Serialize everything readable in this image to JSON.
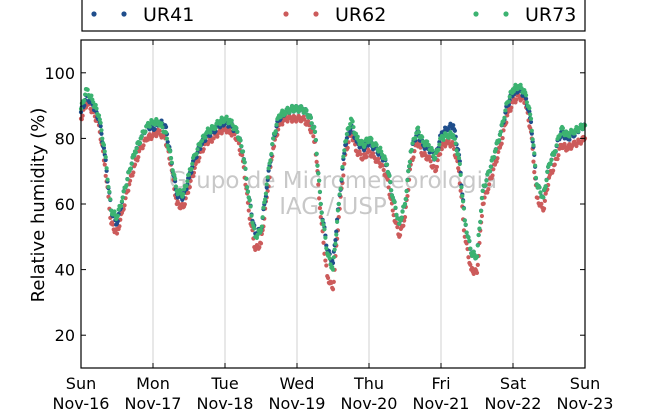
{
  "chart_data": {
    "type": "scatter",
    "ylabel": "Relative humidity (%)",
    "xlabel": "",
    "ylim": [
      10,
      110
    ],
    "xlim": [
      0,
      7
    ],
    "yticks": [
      20,
      40,
      60,
      80,
      100
    ],
    "grid": "vertical",
    "legend_position": "top",
    "xtick_labels": [
      {
        "day": "Sun",
        "date": "Nov-16"
      },
      {
        "day": "Mon",
        "date": "Nov-17"
      },
      {
        "day": "Tue",
        "date": "Nov-18"
      },
      {
        "day": "Wed",
        "date": "Nov-19"
      },
      {
        "day": "Thu",
        "date": "Nov-20"
      },
      {
        "day": "Fri",
        "date": "Nov-21"
      },
      {
        "day": "Sat",
        "date": "Nov-22"
      },
      {
        "day": "Sun",
        "date": "Nov-23"
      }
    ],
    "watermark": [
      "Grupo de Micrometeorologia",
      "IAG / USP"
    ],
    "series": [
      {
        "name": "UR41",
        "color": "#1f4e8c",
        "points": [
          [
            0.0,
            88
          ],
          [
            0.08,
            93
          ],
          [
            0.17,
            90
          ],
          [
            0.25,
            86
          ],
          [
            0.33,
            75
          ],
          [
            0.42,
            58
          ],
          [
            0.5,
            54
          ],
          [
            0.58,
            62
          ],
          [
            0.67,
            70
          ],
          [
            0.75,
            76
          ],
          [
            0.83,
            80
          ],
          [
            0.92,
            84
          ],
          [
            1.0,
            83
          ],
          [
            1.08,
            85
          ],
          [
            1.17,
            84
          ],
          [
            1.25,
            74
          ],
          [
            1.33,
            63
          ],
          [
            1.42,
            62
          ],
          [
            1.5,
            68
          ],
          [
            1.58,
            74
          ],
          [
            1.67,
            78
          ],
          [
            1.75,
            81
          ],
          [
            1.83,
            82
          ],
          [
            1.92,
            84
          ],
          [
            2.0,
            85
          ],
          [
            2.08,
            84
          ],
          [
            2.17,
            82
          ],
          [
            2.25,
            76
          ],
          [
            2.33,
            62
          ],
          [
            2.42,
            51
          ],
          [
            2.5,
            52
          ],
          [
            2.58,
            65
          ],
          [
            2.67,
            80
          ],
          [
            2.75,
            86
          ],
          [
            2.83,
            88
          ],
          [
            2.92,
            89
          ],
          [
            3.0,
            89
          ],
          [
            3.08,
            89
          ],
          [
            3.17,
            87
          ],
          [
            3.25,
            82
          ],
          [
            3.33,
            60
          ],
          [
            3.42,
            46
          ],
          [
            3.5,
            42
          ],
          [
            3.58,
            60
          ],
          [
            3.67,
            78
          ],
          [
            3.75,
            84
          ],
          [
            3.83,
            79
          ],
          [
            3.92,
            77
          ],
          [
            4.0,
            79
          ],
          [
            4.08,
            77
          ],
          [
            4.17,
            75
          ],
          [
            4.25,
            72
          ],
          [
            4.33,
            62
          ],
          [
            4.42,
            54
          ],
          [
            4.5,
            60
          ],
          [
            4.58,
            76
          ],
          [
            4.67,
            82
          ],
          [
            4.75,
            78
          ],
          [
            4.83,
            77
          ],
          [
            4.92,
            74
          ],
          [
            5.0,
            81
          ],
          [
            5.08,
            83
          ],
          [
            5.17,
            84
          ],
          [
            5.25,
            75
          ],
          [
            5.33,
            55
          ],
          [
            5.42,
            45
          ],
          [
            5.5,
            44
          ],
          [
            5.58,
            64
          ],
          [
            5.67,
            70
          ],
          [
            5.75,
            76
          ],
          [
            5.83,
            82
          ],
          [
            5.92,
            90
          ],
          [
            6.0,
            94
          ],
          [
            6.08,
            95
          ],
          [
            6.17,
            93
          ],
          [
            6.25,
            85
          ],
          [
            6.33,
            66
          ],
          [
            6.42,
            62
          ],
          [
            6.5,
            72
          ],
          [
            6.58,
            76
          ],
          [
            6.67,
            82
          ],
          [
            6.75,
            80
          ],
          [
            6.83,
            81
          ],
          [
            6.92,
            83
          ],
          [
            7.0,
            84
          ]
        ]
      },
      {
        "name": "UR62",
        "color": "#cc5b5b",
        "points": [
          [
            0.0,
            86
          ],
          [
            0.08,
            91
          ],
          [
            0.17,
            88
          ],
          [
            0.25,
            84
          ],
          [
            0.33,
            72
          ],
          [
            0.42,
            54
          ],
          [
            0.5,
            51
          ],
          [
            0.58,
            58
          ],
          [
            0.67,
            66
          ],
          [
            0.75,
            72
          ],
          [
            0.83,
            77
          ],
          [
            0.92,
            80
          ],
          [
            1.0,
            81
          ],
          [
            1.08,
            82
          ],
          [
            1.17,
            80
          ],
          [
            1.25,
            72
          ],
          [
            1.33,
            60
          ],
          [
            1.42,
            59
          ],
          [
            1.5,
            65
          ],
          [
            1.58,
            71
          ],
          [
            1.67,
            76
          ],
          [
            1.75,
            79
          ],
          [
            1.83,
            80
          ],
          [
            1.92,
            82
          ],
          [
            2.0,
            83
          ],
          [
            2.08,
            82
          ],
          [
            2.17,
            80
          ],
          [
            2.25,
            73
          ],
          [
            2.33,
            58
          ],
          [
            2.42,
            46
          ],
          [
            2.5,
            48
          ],
          [
            2.58,
            62
          ],
          [
            2.67,
            77
          ],
          [
            2.75,
            84
          ],
          [
            2.83,
            86
          ],
          [
            2.92,
            86
          ],
          [
            3.0,
            86
          ],
          [
            3.08,
            86
          ],
          [
            3.17,
            84
          ],
          [
            3.25,
            79
          ],
          [
            3.33,
            56
          ],
          [
            3.42,
            38
          ],
          [
            3.5,
            34
          ],
          [
            3.58,
            56
          ],
          [
            3.67,
            75
          ],
          [
            3.75,
            82
          ],
          [
            3.83,
            76
          ],
          [
            3.92,
            74
          ],
          [
            4.0,
            76
          ],
          [
            4.08,
            74
          ],
          [
            4.17,
            72
          ],
          [
            4.25,
            68
          ],
          [
            4.33,
            58
          ],
          [
            4.42,
            50
          ],
          [
            4.5,
            56
          ],
          [
            4.58,
            72
          ],
          [
            4.67,
            79
          ],
          [
            4.75,
            75
          ],
          [
            4.83,
            74
          ],
          [
            4.92,
            70
          ],
          [
            5.0,
            77
          ],
          [
            5.08,
            79
          ],
          [
            5.17,
            78
          ],
          [
            5.25,
            70
          ],
          [
            5.33,
            50
          ],
          [
            5.42,
            40
          ],
          [
            5.5,
            39
          ],
          [
            5.58,
            60
          ],
          [
            5.67,
            66
          ],
          [
            5.75,
            72
          ],
          [
            5.83,
            78
          ],
          [
            5.92,
            87
          ],
          [
            6.0,
            91
          ],
          [
            6.08,
            93
          ],
          [
            6.17,
            91
          ],
          [
            6.25,
            82
          ],
          [
            6.33,
            62
          ],
          [
            6.42,
            58
          ],
          [
            6.5,
            68
          ],
          [
            6.58,
            72
          ],
          [
            6.67,
            78
          ],
          [
            6.75,
            77
          ],
          [
            6.83,
            78
          ],
          [
            6.92,
            79
          ],
          [
            7.0,
            80
          ]
        ]
      },
      {
        "name": "UR73",
        "color": "#3cb371",
        "points": [
          [
            0.0,
            89
          ],
          [
            0.08,
            95
          ],
          [
            0.17,
            91
          ],
          [
            0.25,
            87
          ],
          [
            0.33,
            76
          ],
          [
            0.42,
            58
          ],
          [
            0.5,
            56
          ],
          [
            0.58,
            62
          ],
          [
            0.67,
            70
          ],
          [
            0.75,
            76
          ],
          [
            0.83,
            80
          ],
          [
            0.92,
            84
          ],
          [
            1.0,
            85
          ],
          [
            1.08,
            85
          ],
          [
            1.17,
            82
          ],
          [
            1.25,
            74
          ],
          [
            1.33,
            64
          ],
          [
            1.42,
            63
          ],
          [
            1.5,
            69
          ],
          [
            1.58,
            75
          ],
          [
            1.67,
            79
          ],
          [
            1.75,
            82
          ],
          [
            1.83,
            83
          ],
          [
            1.92,
            85
          ],
          [
            2.0,
            86
          ],
          [
            2.08,
            85
          ],
          [
            2.17,
            82
          ],
          [
            2.25,
            76
          ],
          [
            2.33,
            62
          ],
          [
            2.42,
            50
          ],
          [
            2.5,
            52
          ],
          [
            2.58,
            66
          ],
          [
            2.67,
            80
          ],
          [
            2.75,
            87
          ],
          [
            2.83,
            88
          ],
          [
            2.92,
            89
          ],
          [
            3.0,
            89
          ],
          [
            3.08,
            89
          ],
          [
            3.17,
            87
          ],
          [
            3.25,
            82
          ],
          [
            3.33,
            60
          ],
          [
            3.42,
            45
          ],
          [
            3.5,
            40
          ],
          [
            3.58,
            60
          ],
          [
            3.67,
            79
          ],
          [
            3.75,
            86
          ],
          [
            3.83,
            80
          ],
          [
            3.92,
            78
          ],
          [
            4.0,
            80
          ],
          [
            4.08,
            78
          ],
          [
            4.17,
            76
          ],
          [
            4.25,
            72
          ],
          [
            4.33,
            62
          ],
          [
            4.42,
            54
          ],
          [
            4.5,
            60
          ],
          [
            4.58,
            76
          ],
          [
            4.67,
            83
          ],
          [
            4.75,
            79
          ],
          [
            4.83,
            78
          ],
          [
            4.92,
            74
          ],
          [
            5.0,
            80
          ],
          [
            5.08,
            81
          ],
          [
            5.17,
            81
          ],
          [
            5.25,
            74
          ],
          [
            5.33,
            55
          ],
          [
            5.42,
            45
          ],
          [
            5.5,
            44
          ],
          [
            5.58,
            64
          ],
          [
            5.67,
            70
          ],
          [
            5.75,
            76
          ],
          [
            5.83,
            82
          ],
          [
            5.92,
            91
          ],
          [
            6.0,
            95
          ],
          [
            6.08,
            96
          ],
          [
            6.17,
            94
          ],
          [
            6.25,
            86
          ],
          [
            6.33,
            66
          ],
          [
            6.42,
            62
          ],
          [
            6.5,
            72
          ],
          [
            6.58,
            76
          ],
          [
            6.67,
            83
          ],
          [
            6.75,
            81
          ],
          [
            6.83,
            82
          ],
          [
            6.92,
            83
          ],
          [
            7.0,
            84
          ]
        ]
      }
    ]
  }
}
